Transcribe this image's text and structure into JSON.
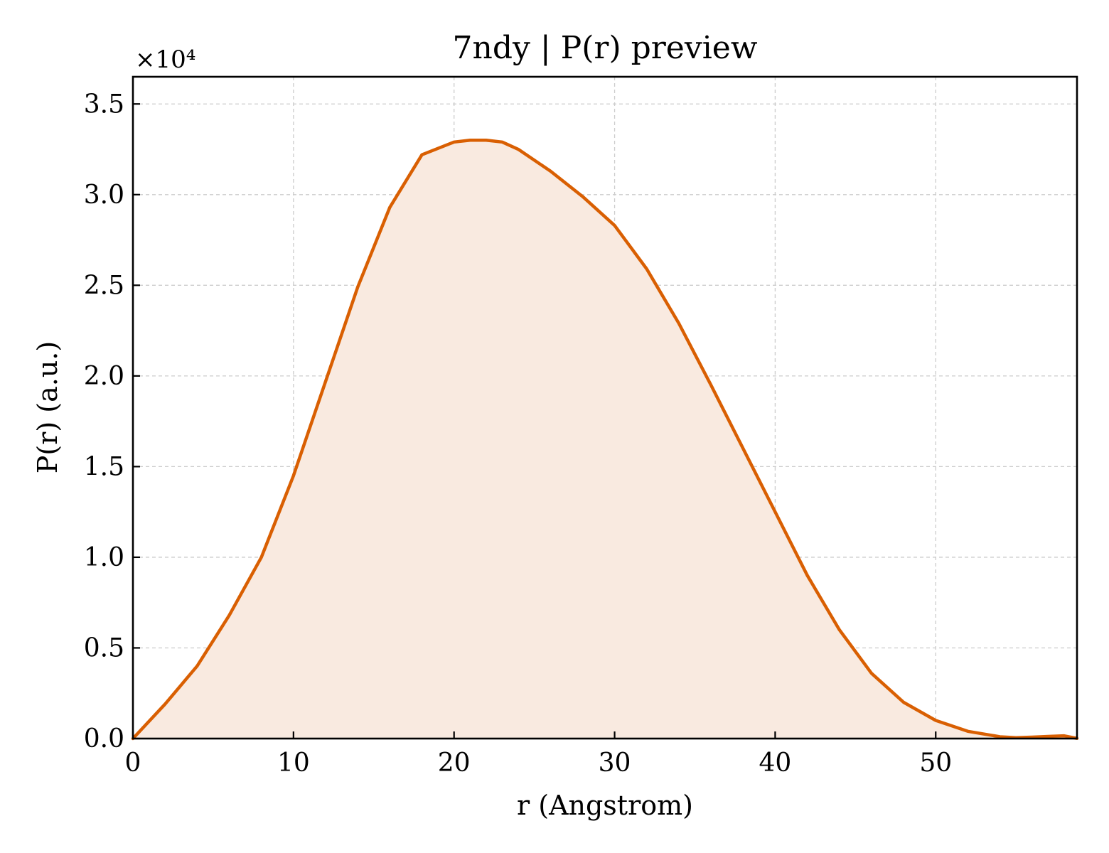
{
  "chart_data": {
    "type": "area",
    "title": "7ndy | P(r) preview",
    "xlabel": "r (Angstrom)",
    "ylabel": "P(r) (a.u.)",
    "y_offset_label": "×10⁴",
    "xlim": [
      0,
      58.8
    ],
    "ylim": [
      0,
      36500
    ],
    "xticks": [
      0,
      10,
      20,
      30,
      40,
      50
    ],
    "xtick_labels": [
      "0",
      "10",
      "20",
      "30",
      "40",
      "50"
    ],
    "yticks": [
      0,
      5000,
      10000,
      15000,
      20000,
      25000,
      30000,
      35000
    ],
    "ytick_labels": [
      "0.0",
      "0.5",
      "1.0",
      "1.5",
      "2.0",
      "2.5",
      "3.0",
      "3.5"
    ],
    "grid": true,
    "line_color": "#d95f02",
    "fill_color": "#f9eae0",
    "series": [
      {
        "x": [
          0,
          2,
          4,
          6,
          8,
          10,
          12,
          14,
          16,
          18,
          20,
          21,
          22,
          23,
          24,
          26,
          28,
          30,
          32,
          34,
          36,
          38,
          40,
          42,
          44,
          46,
          48,
          50,
          52,
          54,
          55,
          56,
          57,
          58,
          58.8
        ],
        "y": [
          0,
          1900,
          4000,
          6800,
          10000,
          14500,
          19700,
          24900,
          29300,
          32200,
          32900,
          33000,
          33000,
          32900,
          32500,
          31300,
          29900,
          28300,
          25900,
          22900,
          19500,
          16000,
          12500,
          9000,
          6000,
          3600,
          2000,
          1000,
          400,
          100,
          50,
          80,
          120,
          150,
          10
        ]
      }
    ]
  }
}
